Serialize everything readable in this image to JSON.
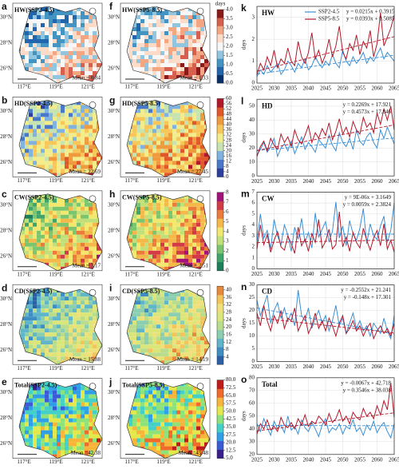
{
  "maps": {
    "xlabels": [
      "117°E",
      "119°E",
      "121°E"
    ],
    "ylabels": [
      "26°N",
      "28°N",
      "30°N"
    ],
    "unit": "days",
    "rows": [
      {
        "lim": [
          0,
          4
        ],
        "ticks": [
          {
            "value": 0,
            "label": "0.0"
          },
          {
            "value": 0.5,
            "label": "0.5"
          },
          {
            "value": 1,
            "label": "1.0"
          },
          {
            "value": 1.5,
            "label": "1.5"
          },
          {
            "value": 2,
            "label": "2.0"
          },
          {
            "value": 2.5,
            "label": "2.5"
          },
          {
            "value": 3,
            "label": "3.0"
          },
          {
            "value": 3.5,
            "label": "3.5"
          },
          {
            "value": 4,
            "label": "4.0"
          }
        ],
        "colors": [
          "#08306b",
          "#2166ac",
          "#4393c3",
          "#92c5de",
          "#f7f7f7",
          "#fddbc7",
          "#f4a582",
          "#d6604d",
          "#8b1a1a"
        ],
        "panels": [
          {
            "letter": "a",
            "title": "HW(SSP2-4.5)",
            "mean": "Mean = 0.84"
          },
          {
            "letter": "f",
            "title": "HW(SSP5-8.5)",
            "mean": "Mean = 1.33"
          }
        ]
      },
      {
        "lim": [
          0,
          60
        ],
        "ticks": [
          0,
          4,
          8,
          12,
          16,
          20,
          24,
          28,
          32,
          36,
          40,
          44,
          48,
          52,
          56,
          60
        ],
        "colors": [
          "#2c3e9e",
          "#4a78c8",
          "#7fb2e0",
          "#c6e3b0",
          "#f3ec8a",
          "#f7c859",
          "#f09a3e",
          "#e0572a",
          "#b2182b"
        ],
        "panels": [
          {
            "letter": "b",
            "title": "HD(SSP2-4.5)",
            "mean": "Mean = 22.69"
          },
          {
            "letter": "g",
            "title": "HD(SSP5-8.5)",
            "mean": "Mean = 27.45"
          }
        ]
      },
      {
        "lim": [
          0,
          8
        ],
        "ticks": [
          0,
          1,
          2,
          3,
          4,
          5,
          6,
          7,
          8
        ],
        "colors": [
          "#1a7f5a",
          "#3fa56a",
          "#7cc56f",
          "#c2e07a",
          "#f2e86d",
          "#f5b94a",
          "#ec7a3a",
          "#d23a45",
          "#a3127a"
        ],
        "panels": [
          {
            "letter": "c",
            "title": "CW(SSP2-4.5)",
            "mean": "Mean = 3.17"
          },
          {
            "letter": "h",
            "title": "CW(SSP5-8.5)",
            "mean": "Mean = 2.51"
          }
        ]
      },
      {
        "lim": [
          0,
          42
        ],
        "ticks": [
          4,
          8,
          12,
          16,
          20,
          24,
          28,
          32,
          36,
          40
        ],
        "colors": [
          "#2b5fa8",
          "#3e8ec4",
          "#5fb5c9",
          "#8ccfb0",
          "#b9dd8c",
          "#dbe67a",
          "#f0e07a",
          "#f2c45a",
          "#e8893a"
        ],
        "panels": [
          {
            "letter": "d",
            "title": "CD(SSP2-4.5)",
            "mean": "Mean = 15.88"
          },
          {
            "letter": "i",
            "title": "CD(SSP5-8.5)",
            "mean": "Mean = 14.19"
          }
        ]
      },
      {
        "lim": [
          5,
          80
        ],
        "ticks": [
          {
            "value": 5,
            "label": "5.0"
          },
          {
            "value": 12.5,
            "label": "12.5"
          },
          {
            "value": 20,
            "label": "20.0"
          },
          {
            "value": 27.5,
            "label": "27.5"
          },
          {
            "value": 35,
            "label": "35.0"
          },
          {
            "value": 42.5,
            "label": "42.5"
          },
          {
            "value": 50,
            "label": "50.0"
          },
          {
            "value": 57.5,
            "label": "57.5"
          },
          {
            "value": 65,
            "label": "65.0"
          },
          {
            "value": 72.5,
            "label": "72.5"
          },
          {
            "value": 80,
            "label": "80.0"
          }
        ],
        "colors": [
          "#3a1e8c",
          "#3b5bd6",
          "#2fa0e8",
          "#43d0c8",
          "#8de27a",
          "#e5e84a",
          "#f9b43a",
          "#f06b2a",
          "#c01a1a"
        ],
        "panels": [
          {
            "letter": "e",
            "title": "Total(SSP2-4.5)",
            "mean": "Mean =42.38"
          },
          {
            "letter": "j",
            "title": "Total(SSP5-8.5)",
            "mean": "Mean =45.48"
          }
        ]
      }
    ]
  },
  "chart_data": [
    {
      "type": "line",
      "letter": "k",
      "title": "HW",
      "ylabel": "days",
      "xlim": [
        2025,
        2065
      ],
      "xticks": [
        2025,
        2030,
        2035,
        2040,
        2045,
        2050,
        2055,
        2060,
        2065
      ],
      "ylim": [
        0,
        3.5
      ],
      "yticks": [
        0,
        1,
        2,
        3
      ],
      "grid": true,
      "x": [
        2025,
        2026,
        2027,
        2028,
        2029,
        2030,
        2031,
        2032,
        2033,
        2034,
        2035,
        2036,
        2037,
        2038,
        2039,
        2040,
        2041,
        2042,
        2043,
        2044,
        2045,
        2046,
        2047,
        2048,
        2049,
        2050,
        2051,
        2052,
        2053,
        2054,
        2055,
        2056,
        2057,
        2058,
        2059,
        2060,
        2061,
        2062,
        2063,
        2064,
        2065
      ],
      "series": [
        {
          "name": "SSP2-4.5",
          "color": "#3b8fd4",
          "values": [
            0.3,
            0.6,
            0.4,
            0.8,
            0.5,
            0.7,
            0.9,
            0.4,
            0.6,
            1.0,
            0.8,
            0.5,
            0.9,
            0.7,
            1.1,
            0.6,
            0.8,
            1.2,
            0.9,
            0.7,
            1.0,
            0.8,
            1.3,
            0.9,
            0.7,
            1.5,
            1.0,
            0.8,
            1.2,
            0.9,
            1.1,
            1.4,
            0.9,
            1.2,
            1.0,
            1.3,
            1.6,
            1.1,
            1.4,
            1.2,
            1.0
          ],
          "trend": {
            "slope": 0.0215,
            "intercept": 0.3915
          },
          "trend_label": "y = 0.0215x + 0.3915"
        },
        {
          "name": "SSP5-8.5",
          "color": "#b2182b",
          "values": [
            0.4,
            0.9,
            0.6,
            1.2,
            0.8,
            1.5,
            0.7,
            1.1,
            0.9,
            1.6,
            1.0,
            0.8,
            1.9,
            1.2,
            0.9,
            1.4,
            2.3,
            1.1,
            1.5,
            0.9,
            1.3,
            2.0,
            1.2,
            1.7,
            2.6,
            1.4,
            1.1,
            1.8,
            1.5,
            2.2,
            1.3,
            1.9,
            1.6,
            2.4,
            1.2,
            1.8,
            3.2,
            1.7,
            2.1,
            2.5,
            3.1
          ],
          "trend": {
            "slope": 0.0393,
            "intercept": 0.5085
          },
          "trend_label": "y = 0.0393x + 0.5085"
        }
      ]
    },
    {
      "type": "line",
      "letter": "l",
      "title": "HD",
      "ylabel": "days",
      "xlim": [
        2025,
        2065
      ],
      "xticks": [
        2025,
        2030,
        2035,
        2040,
        2045,
        2050,
        2055,
        2060,
        2065
      ],
      "ylim": [
        0,
        55
      ],
      "yticks": [
        0,
        10,
        20,
        30,
        40,
        50
      ],
      "grid": true,
      "x": [
        2025,
        2026,
        2027,
        2028,
        2029,
        2030,
        2031,
        2032,
        2033,
        2034,
        2035,
        2036,
        2037,
        2038,
        2039,
        2040,
        2041,
        2042,
        2043,
        2044,
        2045,
        2046,
        2047,
        2048,
        2049,
        2050,
        2051,
        2052,
        2053,
        2054,
        2055,
        2056,
        2057,
        2058,
        2059,
        2060,
        2061,
        2062,
        2063,
        2064,
        2065
      ],
      "series": [
        {
          "color": "#3b8fd4",
          "values": [
            15,
            19,
            24,
            17,
            21,
            27,
            14,
            20,
            23,
            18,
            25,
            16,
            22,
            28,
            19,
            24,
            21,
            17,
            26,
            23,
            20,
            29,
            22,
            18,
            31,
            24,
            21,
            27,
            19,
            33,
            25,
            22,
            28,
            31,
            24,
            20,
            33,
            27,
            35,
            29,
            23
          ],
          "trend": {
            "slope": 0.2269,
            "intercept": 17.921
          },
          "trend_label": "y = 0.2269x + 17.921"
        },
        {
          "color": "#b2182b",
          "values": [
            14,
            21,
            25,
            18,
            27,
            22,
            19,
            30,
            24,
            28,
            21,
            33,
            26,
            23,
            29,
            36,
            24,
            31,
            27,
            34,
            29,
            38,
            26,
            32,
            41,
            30,
            35,
            28,
            39,
            33,
            30,
            42,
            35,
            38,
            31,
            45,
            37,
            48,
            40,
            50,
            33
          ],
          "trend": {
            "slope": 0.4573,
            "intercept": 17.846
          },
          "trend_label": "y = 0.4573x + 17.846"
        }
      ]
    },
    {
      "type": "line",
      "letter": "m",
      "title": "CW",
      "ylabel": "days",
      "xlim": [
        2025,
        2065
      ],
      "xticks": [
        2025,
        2030,
        2035,
        2040,
        2045,
        2050,
        2055,
        2060,
        2065
      ],
      "ylim": [
        0,
        7
      ],
      "yticks": [
        0,
        1,
        2,
        3,
        4,
        5,
        6,
        7
      ],
      "grid": true,
      "x": [
        2025,
        2026,
        2027,
        2028,
        2029,
        2030,
        2031,
        2032,
        2033,
        2034,
        2035,
        2036,
        2037,
        2038,
        2039,
        2040,
        2041,
        2042,
        2043,
        2044,
        2045,
        2046,
        2047,
        2048,
        2049,
        2050,
        2051,
        2052,
        2053,
        2054,
        2055,
        2056,
        2057,
        2058,
        2059,
        2060,
        2061,
        2062,
        2063,
        2064,
        2065
      ],
      "series": [
        {
          "color": "#3b8fd4",
          "values": [
            2.5,
            5.0,
            2.8,
            3.5,
            1.8,
            4.5,
            3.0,
            2.2,
            4.0,
            3.1,
            1.6,
            3.8,
            2.7,
            4.6,
            2.4,
            3.3,
            1.9,
            5.1,
            2.9,
            3.6,
            4.3,
            2.5,
            3.4,
            6.1,
            2.8,
            3.9,
            2.1,
            4.4,
            3.2,
            2.6,
            3.7,
            5.5,
            2.3,
            4.1,
            3.0,
            2.7,
            3.9,
            4.8,
            2.4,
            3.5,
            6.0
          ],
          "trend": {
            "slope": 9e-06,
            "intercept": 3.1649
          },
          "trend_label": "y = 9E-06x + 3.1649"
        },
        {
          "color": "#b2182b",
          "values": [
            1.8,
            4.0,
            2.2,
            3.1,
            1.5,
            2.6,
            3.4,
            2.0,
            1.7,
            3.0,
            2.3,
            1.4,
            3.8,
            2.1,
            2.7,
            1.6,
            3.2,
            2.4,
            4.5,
            1.9,
            2.5,
            3.6,
            1.8,
            2.2,
            5.2,
            2.0,
            2.9,
            1.6,
            3.3,
            2.4,
            1.9,
            3.7,
            2.6,
            1.7,
            2.8,
            3.5,
            2.1,
            4.1,
            1.8,
            2.6,
            1.5
          ],
          "trend": {
            "slope": 0.0059,
            "intercept": 2.3824
          },
          "trend_label": "y = 0.0059x + 2.3824"
        }
      ]
    },
    {
      "type": "line",
      "letter": "n",
      "title": "CD",
      "ylabel": "days",
      "xlim": [
        2025,
        2065
      ],
      "xticks": [
        2025,
        2030,
        2035,
        2040,
        2045,
        2050,
        2055,
        2060,
        2065
      ],
      "ylim": [
        0,
        30
      ],
      "yticks": [
        0,
        5,
        10,
        15,
        20,
        25,
        30
      ],
      "grid": true,
      "x": [
        2025,
        2026,
        2027,
        2028,
        2029,
        2030,
        2031,
        2032,
        2033,
        2034,
        2035,
        2036,
        2037,
        2038,
        2039,
        2040,
        2041,
        2042,
        2043,
        2044,
        2045,
        2046,
        2047,
        2048,
        2049,
        2050,
        2051,
        2052,
        2053,
        2054,
        2055,
        2056,
        2057,
        2058,
        2059,
        2060,
        2061,
        2062,
        2063,
        2064,
        2065
      ],
      "series": [
        {
          "color": "#3b8fd4",
          "values": [
            24,
            18,
            22,
            26,
            15,
            20,
            23,
            17,
            21,
            16,
            19,
            14,
            28,
            18,
            16,
            21,
            13,
            17,
            20,
            15,
            18,
            12,
            16,
            22,
            14,
            17,
            11,
            15,
            19,
            13,
            16,
            12,
            14,
            10,
            15,
            13,
            11,
            17,
            12,
            9,
            18
          ],
          "trend": {
            "slope": -0.2552,
            "intercept": 21.241
          },
          "trend_label": "y = -0.2552x + 21.241"
        },
        {
          "color": "#b2182b",
          "values": [
            19,
            14,
            22,
            16,
            12,
            18,
            15,
            20,
            13,
            17,
            16,
            21,
            12,
            15,
            18,
            11,
            14,
            19,
            13,
            16,
            12,
            17,
            14,
            10,
            15,
            18,
            11,
            13,
            16,
            12,
            14,
            10,
            13,
            15,
            9,
            12,
            14,
            11,
            13,
            10,
            15
          ],
          "trend": {
            "slope": -0.148,
            "intercept": 17.301
          },
          "trend_label": "y = -0.148x + 17.301"
        }
      ]
    },
    {
      "type": "line",
      "letter": "o",
      "title": "Total",
      "ylabel": "days",
      "xlim": [
        2025,
        2065
      ],
      "xticks": [
        2025,
        2030,
        2035,
        2040,
        2045,
        2050,
        2055,
        2060,
        2065
      ],
      "ylim": [
        20,
        80
      ],
      "yticks": [
        20,
        30,
        40,
        50,
        60,
        70,
        80
      ],
      "grid": true,
      "x": [
        2025,
        2026,
        2027,
        2028,
        2029,
        2030,
        2031,
        2032,
        2033,
        2034,
        2035,
        2036,
        2037,
        2038,
        2039,
        2040,
        2041,
        2042,
        2043,
        2044,
        2045,
        2046,
        2047,
        2048,
        2049,
        2050,
        2051,
        2052,
        2053,
        2054,
        2055,
        2056,
        2057,
        2058,
        2059,
        2060,
        2061,
        2062,
        2063,
        2064,
        2065
      ],
      "series": [
        {
          "color": "#3b8fd4",
          "values": [
            44,
            38,
            48,
            41,
            35,
            46,
            40,
            43,
            37,
            50,
            39,
            42,
            36,
            47,
            41,
            38,
            45,
            40,
            34,
            43,
            48,
            37,
            41,
            39,
            44,
            36,
            42,
            40,
            47,
            38,
            41,
            35,
            43,
            39,
            46,
            37,
            42,
            45,
            38,
            33,
            44
          ],
          "trend": {
            "slope": -0.0067,
            "intercept": 42.718
          },
          "trend_label": "y = -0.0067x + 42.718"
        },
        {
          "color": "#b2182b",
          "values": [
            36,
            44,
            40,
            47,
            39,
            42,
            38,
            49,
            43,
            41,
            45,
            40,
            48,
            43,
            51,
            42,
            46,
            44,
            50,
            47,
            43,
            52,
            45,
            48,
            55,
            46,
            50,
            44,
            53,
            49,
            47,
            56,
            50,
            53,
            48,
            58,
            51,
            62,
            55,
            76,
            49
          ],
          "trend": {
            "slope": 0.3546,
            "intercept": 38.038
          },
          "trend_label": "y = 0.3546x + 38.038"
        }
      ]
    }
  ]
}
